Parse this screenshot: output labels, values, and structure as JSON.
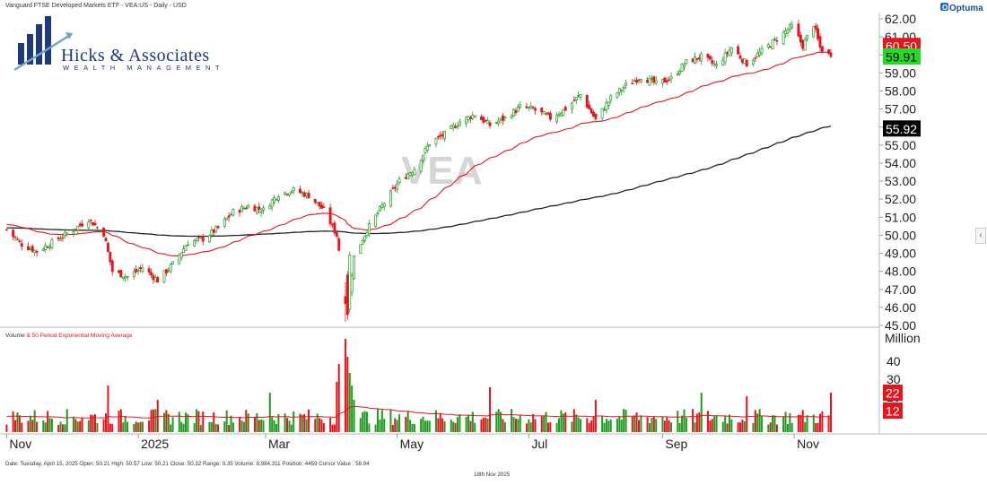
{
  "header": {
    "instrument": "Vanguard FTSE Developed Markets ETF - VEA:US - Daily - USD",
    "brand": "Optuma"
  },
  "logo": {
    "name": "Hicks & Associates",
    "subtitle": "WEALTH MANAGEMENT"
  },
  "watermark": "VEA",
  "price_badges": [
    {
      "value": "60.50",
      "bg": "#e8141b",
      "fg": "#ffffff"
    },
    {
      "value": "59.91",
      "bg": "#22dd22",
      "fg": "#000000"
    },
    {
      "value": "55.92",
      "bg": "#000000",
      "fg": "#ffffff"
    }
  ],
  "volume_panel": {
    "title_a": "Volume",
    "title_b": " & 50 Period Exponential Moving Average",
    "unit": "Million",
    "badges": [
      {
        "value": "22",
        "bg": "#e8141b",
        "fg": "#ffffff"
      },
      {
        "value": "12",
        "bg": "#e8141b",
        "fg": "#ffffff"
      }
    ]
  },
  "status_line": "Date: Tuesday, April 15, 2025 Open: 50.21 High: 50.57 Low: 50.21 Close: 50.32 Range: 0.35 Volume: 8,984,311 Position: 4459 Cursor Value : 56.94",
  "footer_date": "18th Nov 2025",
  "colors": {
    "up": "#1f9d1f",
    "down": "#e8141b",
    "ema": "#e8141b",
    "sma": "#222222"
  },
  "chart_data": {
    "type": "candlestick",
    "price_axis": {
      "ticks": [
        "62.00",
        "61.00",
        "60.00",
        "59.00",
        "58.00",
        "57.00",
        "56.00",
        "55.00",
        "54.00",
        "53.00",
        "52.00",
        "51.00",
        "50.00",
        "49.00",
        "48.00",
        "47.00",
        "46.00",
        "45.00"
      ],
      "ylim": [
        45,
        62.2
      ]
    },
    "volume_axis": {
      "ticks": [
        "40",
        "30",
        "20"
      ],
      "ylim": [
        0,
        52
      ]
    },
    "x_labels": [
      "Nov",
      "2025",
      "Mar",
      "May",
      "Jul",
      "Sep",
      "Nov"
    ],
    "moving_averages": [
      "50 Period Exponential Moving Average (red)",
      "200 Period Moving Average (black)"
    ],
    "anchors": [
      {
        "x": "2024-11-01",
        "close": 50.3
      },
      {
        "x": "2024-11-08",
        "close": 49.5
      },
      {
        "x": "2024-11-15",
        "close": 49.1
      },
      {
        "x": "2024-11-22",
        "close": 49.6
      },
      {
        "x": "2024-12-02",
        "close": 50.3
      },
      {
        "x": "2024-12-09",
        "close": 50.9
      },
      {
        "x": "2024-12-16",
        "close": 50.1
      },
      {
        "x": "2024-12-20",
        "close": 48.0
      },
      {
        "x": "2024-12-27",
        "close": 47.7
      },
      {
        "x": "2025-01-03",
        "close": 48.2
      },
      {
        "x": "2025-01-10",
        "close": 47.5
      },
      {
        "x": "2025-01-17",
        "close": 48.4
      },
      {
        "x": "2025-01-24",
        "close": 49.6
      },
      {
        "x": "2025-01-31",
        "close": 49.8
      },
      {
        "x": "2025-02-07",
        "close": 50.4
      },
      {
        "x": "2025-02-14",
        "close": 51.3
      },
      {
        "x": "2025-02-21",
        "close": 51.6
      },
      {
        "x": "2025-02-28",
        "close": 51.4
      },
      {
        "x": "2025-03-07",
        "close": 52.3
      },
      {
        "x": "2025-03-14",
        "close": 52.5
      },
      {
        "x": "2025-03-21",
        "close": 52.2
      },
      {
        "x": "2025-03-28",
        "close": 51.4
      },
      {
        "x": "2025-04-03",
        "close": 50.0
      },
      {
        "x": "2025-04-08",
        "close": 46.0
      },
      {
        "x": "2025-04-11",
        "close": 48.8
      },
      {
        "x": "2025-04-17",
        "close": 50.3
      },
      {
        "x": "2025-04-25",
        "close": 51.8
      },
      {
        "x": "2025-05-02",
        "close": 53.0
      },
      {
        "x": "2025-05-09",
        "close": 53.7
      },
      {
        "x": "2025-05-16",
        "close": 55.1
      },
      {
        "x": "2025-05-23",
        "close": 55.6
      },
      {
        "x": "2025-05-30",
        "close": 56.3
      },
      {
        "x": "2025-06-06",
        "close": 56.7
      },
      {
        "x": "2025-06-13",
        "close": 56.1
      },
      {
        "x": "2025-06-20",
        "close": 56.5
      },
      {
        "x": "2025-06-27",
        "close": 57.1
      },
      {
        "x": "2025-07-03",
        "close": 57.0
      },
      {
        "x": "2025-07-11",
        "close": 56.5
      },
      {
        "x": "2025-07-18",
        "close": 57.0
      },
      {
        "x": "2025-07-25",
        "close": 57.8
      },
      {
        "x": "2025-08-01",
        "close": 56.4
      },
      {
        "x": "2025-08-08",
        "close": 57.6
      },
      {
        "x": "2025-08-15",
        "close": 58.3
      },
      {
        "x": "2025-08-22",
        "close": 58.8
      },
      {
        "x": "2025-08-29",
        "close": 58.4
      },
      {
        "x": "2025-09-05",
        "close": 58.7
      },
      {
        "x": "2025-09-12",
        "close": 59.6
      },
      {
        "x": "2025-09-19",
        "close": 59.9
      },
      {
        "x": "2025-09-26",
        "close": 59.4
      },
      {
        "x": "2025-10-03",
        "close": 60.4
      },
      {
        "x": "2025-10-10",
        "close": 59.5
      },
      {
        "x": "2025-10-17",
        "close": 60.2
      },
      {
        "x": "2025-10-24",
        "close": 60.9
      },
      {
        "x": "2025-10-31",
        "close": 61.6
      },
      {
        "x": "2025-11-05",
        "close": 60.5
      },
      {
        "x": "2025-11-10",
        "close": 61.7
      },
      {
        "x": "2025-11-13",
        "close": 60.4
      },
      {
        "x": "2025-11-18",
        "close": 59.91
      }
    ],
    "last_close": 59.91,
    "ema50_last": 60.5,
    "sma200_last": 55.92,
    "volume_ema_last": 12,
    "volume_last": 22
  }
}
